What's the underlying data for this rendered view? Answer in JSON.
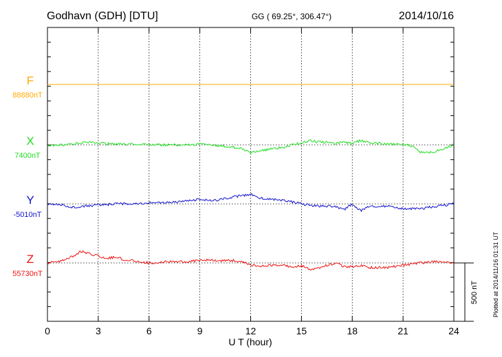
{
  "header": {
    "station": "Godhavn (GDH)  [DTU]",
    "coords": "GG ( 69.25°, 306.47°)",
    "date": "2014/10/16"
  },
  "footer_note": "Plotted at 2014/11/16 01:31  UT",
  "colors": {
    "F": "#ffaa00",
    "X": "#22dd22",
    "Y": "#1111cc",
    "Z": "#ee1111"
  },
  "chart_data": {
    "type": "line",
    "xlabel": "U T (hour)",
    "xlim": [
      0,
      24
    ],
    "xticks": [
      0,
      3,
      6,
      9,
      12,
      15,
      18,
      21,
      24
    ],
    "grid": true,
    "scale_bar": {
      "label": "500 nT",
      "value": 500
    },
    "series": [
      {
        "name": "F",
        "baseline_label": "88880nT",
        "x": [
          0,
          24
        ],
        "values": [
          0,
          0
        ]
      },
      {
        "name": "X",
        "baseline_label": "7400nT",
        "x": [
          0,
          1,
          1.5,
          2,
          2.5,
          3,
          4,
          5,
          6,
          7,
          8,
          9,
          10,
          10.5,
          11,
          11.5,
          12,
          12.5,
          13,
          14,
          14.5,
          15,
          15.5,
          16,
          17,
          17.5,
          18,
          18.5,
          19,
          20,
          21,
          21.5,
          22,
          22.5,
          23,
          24
        ],
        "values": [
          -5,
          0,
          10,
          15,
          25,
          15,
          5,
          5,
          0,
          0,
          0,
          5,
          -5,
          -10,
          -20,
          -30,
          -70,
          -55,
          -40,
          -20,
          0,
          20,
          35,
          25,
          15,
          25,
          10,
          40,
          20,
          5,
          5,
          -10,
          -60,
          -70,
          -50,
          0
        ]
      },
      {
        "name": "Y",
        "baseline_label": "-5010nT",
        "x": [
          0,
          1,
          1.5,
          2,
          3,
          4,
          5,
          6,
          7,
          8,
          9,
          10,
          11,
          11.5,
          12,
          12.5,
          13,
          14,
          15,
          16,
          17,
          17.5,
          18,
          18.5,
          19,
          20,
          21,
          22,
          23,
          24
        ],
        "values": [
          0,
          -10,
          -30,
          -20,
          -10,
          0,
          0,
          10,
          10,
          20,
          40,
          30,
          60,
          70,
          80,
          50,
          40,
          30,
          0,
          -20,
          -20,
          -50,
          0,
          -60,
          -20,
          -20,
          -40,
          -40,
          -20,
          0
        ]
      },
      {
        "name": "Z",
        "baseline_label": "55730nT",
        "x": [
          0,
          1,
          1.5,
          2,
          2.5,
          3,
          3.5,
          4,
          4.5,
          5,
          6,
          7,
          8,
          9,
          9.5,
          10,
          11,
          11.5,
          12,
          12.5,
          13,
          14,
          14.5,
          15,
          15.5,
          16,
          17,
          17.5,
          18,
          18.5,
          19,
          20,
          21,
          22,
          23,
          24
        ],
        "values": [
          0,
          20,
          60,
          100,
          80,
          60,
          40,
          50,
          30,
          20,
          0,
          10,
          10,
          20,
          30,
          20,
          20,
          10,
          -20,
          -30,
          -20,
          -20,
          -40,
          -20,
          -60,
          -40,
          0,
          -30,
          -30,
          -20,
          -40,
          -40,
          -20,
          0,
          10,
          0
        ]
      }
    ]
  }
}
